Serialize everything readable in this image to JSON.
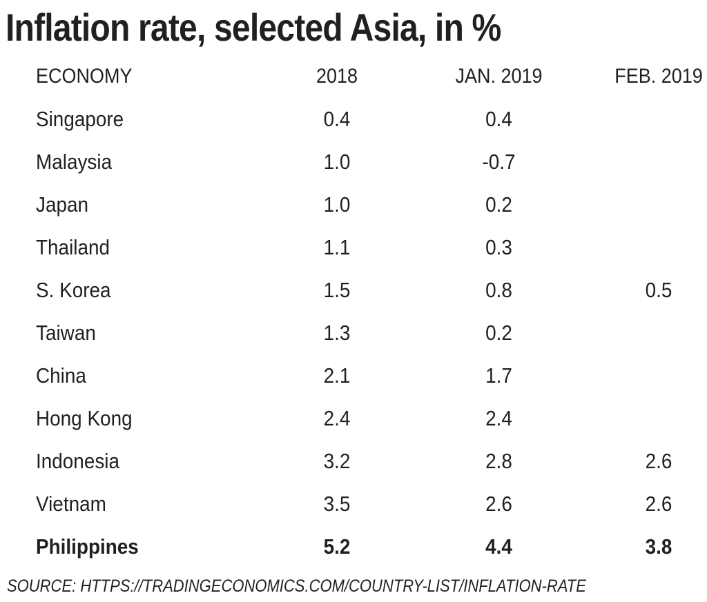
{
  "chart_data": {
    "type": "table",
    "title": "Inflation rate, selected Asia, in %",
    "columns": [
      "ECONOMY",
      "2018",
      "JAN. 2019",
      "FEB. 2019"
    ],
    "rows": [
      {
        "economy": "Singapore",
        "y2018": "0.4",
        "jan2019": "0.4",
        "feb2019": ""
      },
      {
        "economy": "Malaysia",
        "y2018": "1.0",
        "jan2019": "-0.7",
        "feb2019": ""
      },
      {
        "economy": "Japan",
        "y2018": "1.0",
        "jan2019": "0.2",
        "feb2019": ""
      },
      {
        "economy": "Thailand",
        "y2018": "1.1",
        "jan2019": "0.3",
        "feb2019": ""
      },
      {
        "economy": "S. Korea",
        "y2018": "1.5",
        "jan2019": "0.8",
        "feb2019": "0.5"
      },
      {
        "economy": "Taiwan",
        "y2018": "1.3",
        "jan2019": "0.2",
        "feb2019": ""
      },
      {
        "economy": "China",
        "y2018": "2.1",
        "jan2019": "1.7",
        "feb2019": ""
      },
      {
        "economy": "Hong Kong",
        "y2018": "2.4",
        "jan2019": "2.4",
        "feb2019": ""
      },
      {
        "economy": "Indonesia",
        "y2018": "3.2",
        "jan2019": "2.8",
        "feb2019": "2.6"
      },
      {
        "economy": "Vietnam",
        "y2018": "3.5",
        "jan2019": "2.6",
        "feb2019": "2.6"
      },
      {
        "economy": "Philippines",
        "y2018": "5.2",
        "jan2019": "4.4",
        "feb2019": "3.8",
        "highlight": true
      }
    ],
    "source": "SOURCE: HTTPS://TRADINGECONOMICS.COM/COUNTRY-LIST/INFLATION-RATE"
  }
}
